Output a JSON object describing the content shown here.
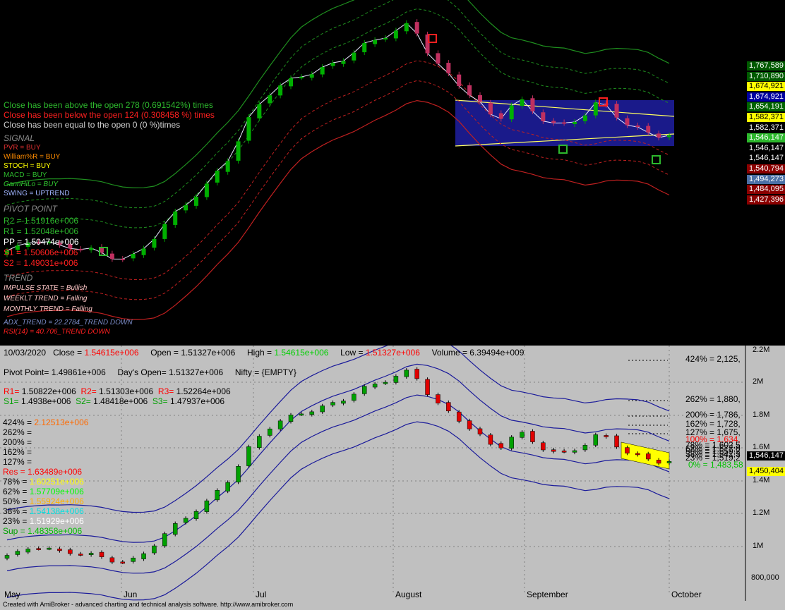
{
  "top_panel": {
    "stats": [
      {
        "text": "Close has been above the open 278 (0.691542%) times",
        "color": "#2db82d"
      },
      {
        "text": "Close has been below the open 124 (0.308458 %) times",
        "color": "#ff2020"
      },
      {
        "text": "Close has been equal to the open 0 (0 %)times",
        "color": "#d0d0d0"
      }
    ],
    "signal_heading": "SIGNAL",
    "signals": [
      {
        "text": "PVR = BUY",
        "color": "#e03030"
      },
      {
        "text": "William%R = BUY",
        "color": "#ff8c00"
      },
      {
        "text": "STOCH = BUY",
        "color": "#ffff00"
      },
      {
        "text": "MACD = BUY",
        "color": "#2db82d"
      },
      {
        "text": "GannHiLo = BUY",
        "color": "#32cd32"
      },
      {
        "text": "SWING = UPTREND",
        "color": "#a0b4ff"
      }
    ],
    "pivot_heading": "PIVOT POINT",
    "pivots": [
      {
        "text": "R2 = 1.51916e+006",
        "color": "#2db82d"
      },
      {
        "text": "R1 = 1.52048e+006",
        "color": "#2db82d"
      },
      {
        "text": "PP = 1.50474e+006",
        "color": "#ffffff"
      },
      {
        "text": "S1 = 1.50606e+006",
        "color": "#ff2020"
      },
      {
        "text": "S2 = 1.49031e+006",
        "color": "#ff2020"
      }
    ],
    "trend_heading": "TREND",
    "trends": [
      {
        "text": "IMPULSE STATE = Bullish",
        "color": "#ffc8c8"
      },
      {
        "text": "WEEKLT TREND = Falling",
        "color": "#ffc8c8"
      },
      {
        "text": "MONTHLY TREND = Falling",
        "color": "#ffc8c8"
      }
    ],
    "adx": {
      "text": "ADX_TREND = 22.2784_TREND DOWN",
      "color": "#7b8cc8"
    },
    "rsi": {
      "text": "RSI(14) = 40.706_TREND DOWN",
      "color": "#ff2020"
    },
    "price_tags": [
      {
        "text": "1,767,589",
        "bg": "#005a00",
        "fg": "#ffffff"
      },
      {
        "text": "1,710,890",
        "bg": "#005a00",
        "fg": "#ffffff"
      },
      {
        "text": "1,674,921",
        "bg": "#ffff00",
        "fg": "#000000"
      },
      {
        "text": "1,674,921",
        "bg": "#0000a0",
        "fg": "#ffffff"
      },
      {
        "text": "1,654,191",
        "bg": "#006400",
        "fg": "#ffffff"
      },
      {
        "text": "1,582,371",
        "bg": "#ffff00",
        "fg": "#000000"
      },
      {
        "text": "1,582,371",
        "bg": "#000000",
        "fg": "#ffffff"
      },
      {
        "text": "1,546,147",
        "bg": "#2db82d",
        "fg": "#ffffff"
      },
      {
        "text": "1,546,147",
        "bg": "#000000",
        "fg": "#ffffff"
      },
      {
        "text": "1,546,147",
        "bg": "#000000",
        "fg": "#ffffff"
      },
      {
        "text": "1,540,794",
        "bg": "#8b0000",
        "fg": "#ffffff"
      },
      {
        "text": "1,494,273",
        "bg": "#4a6fa5",
        "fg": "#ffffff"
      },
      {
        "text": "1,484,095",
        "bg": "#8b0000",
        "fg": "#ffffff"
      },
      {
        "text": "1,427,396",
        "bg": "#8b0000",
        "fg": "#ffffff"
      }
    ]
  },
  "bottom_panel": {
    "header": {
      "date": "10/03/2020",
      "close_label": "Close = ",
      "close_value": "1.54615e+006",
      "open_label": "Open = 1.51327e+006",
      "high_label": "High = ",
      "high_value": "1.54615e+006",
      "low_label": "Low = ",
      "low_value": "1.51327e+006",
      "volume_label": "Volume = 6.39494e+009"
    },
    "line2": {
      "pivot": "Pivot Point= 1.49861e+006",
      "days_open": "Day's Open= 1.51327e+006",
      "nifty": "Nifty = {EMPTY}"
    },
    "rline1": [
      {
        "label": "R1= ",
        "value": "1.50822e+006"
      },
      {
        "label": "R2= ",
        "value": "1.51303e+006"
      },
      {
        "label": "R3= ",
        "value": "1.52264e+006"
      }
    ],
    "sline1": [
      {
        "label": "S1= ",
        "value": "1.4938e+006"
      },
      {
        "label": "S2= ",
        "value": "1.48418e+006"
      },
      {
        "label": "S3= ",
        "value": "1.47937e+006"
      }
    ],
    "fib_left": [
      {
        "label": "424% = ",
        "value": "2.12513e+006",
        "lc": "#000000",
        "vc": "#ff6a00"
      },
      {
        "label": "262% = ",
        "value": "",
        "lc": "#000000",
        "vc": "#000000"
      },
      {
        "label": "200% = ",
        "value": "",
        "lc": "#000000",
        "vc": "#000000"
      },
      {
        "label": "162% = ",
        "value": "",
        "lc": "#000000",
        "vc": "#000000"
      },
      {
        "label": "127% = ",
        "value": "",
        "lc": "#000000",
        "vc": "#000000"
      },
      {
        "label": "Res   = ",
        "value": "1.63489e+006",
        "lc": "#ff0000",
        "vc": "#ff0000"
      },
      {
        "label": "78% = ",
        "value": "1.60251e+006",
        "lc": "#000000",
        "vc": "#ffff00"
      },
      {
        "label": "62% = ",
        "value": "1.57709e+006",
        "lc": "#000000",
        "vc": "#00ff00"
      },
      {
        "label": "50% = ",
        "value": "1.55924e+006",
        "lc": "#000000",
        "vc": "#ffb000"
      },
      {
        "label": "38% = ",
        "value": "1.54138e+006",
        "lc": "#000000",
        "vc": "#00e0e0"
      },
      {
        "label": "23% = ",
        "value": "1.51929e+006",
        "lc": "#000000",
        "vc": "#ffffff"
      },
      {
        "label": "Sup  = ",
        "value": "1.48358e+006",
        "lc": "#00a000",
        "vc": "#00c000"
      }
    ],
    "fib_right": [
      {
        "text": "424% = 2,125,",
        "color": "#000000"
      },
      {
        "text": "262% = 1,880,",
        "color": "#000000"
      },
      {
        "text": "200% = 1,786,",
        "color": "#000000"
      },
      {
        "text": "162% = 1,728,",
        "color": "#000000"
      },
      {
        "text": "127% = 1,675,",
        "color": "#000000"
      },
      {
        "text": "100% = 1,634,",
        "color": "#ff0000"
      },
      {
        "text": "78% = 1,602,5",
        "color": "#000000"
      },
      {
        "text": "62% = 1,577,0",
        "color": "#000000"
      },
      {
        "text": "50% = 1,559,2",
        "color": "#000000"
      },
      {
        "text": "38% = 1,541,3",
        "color": "#000000"
      },
      {
        "text": "23% = 1,519,2",
        "color": "#000000"
      },
      {
        "text": "0% = 1,483,58",
        "color": "#00c000"
      }
    ],
    "y_ticks": [
      "2.2M",
      "2M",
      "1.8M",
      "1.6M",
      "1.4M",
      "1.2M",
      "1M",
      "800,000"
    ],
    "tags": [
      {
        "text": "1,546,147",
        "bg": "#000000",
        "fg": "#ffffff"
      },
      {
        "text": "1,450,404",
        "bg": "#ffff00",
        "fg": "#000000"
      }
    ],
    "x_ticks": [
      "May",
      "Jun",
      "Jul",
      "August",
      "September",
      "October"
    ]
  },
  "footer": "Created with AmiBroker - advanced charting and technical analysis software. http://www.amibroker.com",
  "chart_data": {
    "type": "candlestick",
    "x_ticks": [
      "May",
      "Jun",
      "Jul",
      "August",
      "September",
      "October"
    ],
    "y_ticks": [
      "2.2M",
      "2M",
      "1.8M",
      "1.6M",
      "1.4M",
      "1.2M",
      "1M",
      "800,000"
    ],
    "ylim": [
      740000,
      2260000
    ],
    "close_path": [
      960000,
      975000,
      1010000,
      1030000,
      1020000,
      990000,
      985000,
      975000,
      970000,
      960000,
      950000,
      940000,
      930000,
      950000,
      990000,
      1050000,
      1110000,
      1170000,
      1220000,
      1260000,
      1300000,
      1360000,
      1420000,
      1510000,
      1620000,
      1700000,
      1760000,
      1790000,
      1810000,
      1830000,
      1850000,
      1870000,
      1900000,
      1920000,
      1950000,
      1980000,
      2000000,
      2020000,
      2050000,
      2080000,
      2110000,
      2060000,
      1960000,
      1890000,
      1840000,
      1800000,
      1760000,
      1720000,
      1660000,
      1630000,
      1680000,
      1720000,
      1680000,
      1640000,
      1620000,
      1600000,
      1610000,
      1630000,
      1660000,
      1710000,
      1680000,
      1640000,
      1600000,
      1580000,
      1560000,
      1540000,
      1546147
    ],
    "last_close": 1546147
  }
}
